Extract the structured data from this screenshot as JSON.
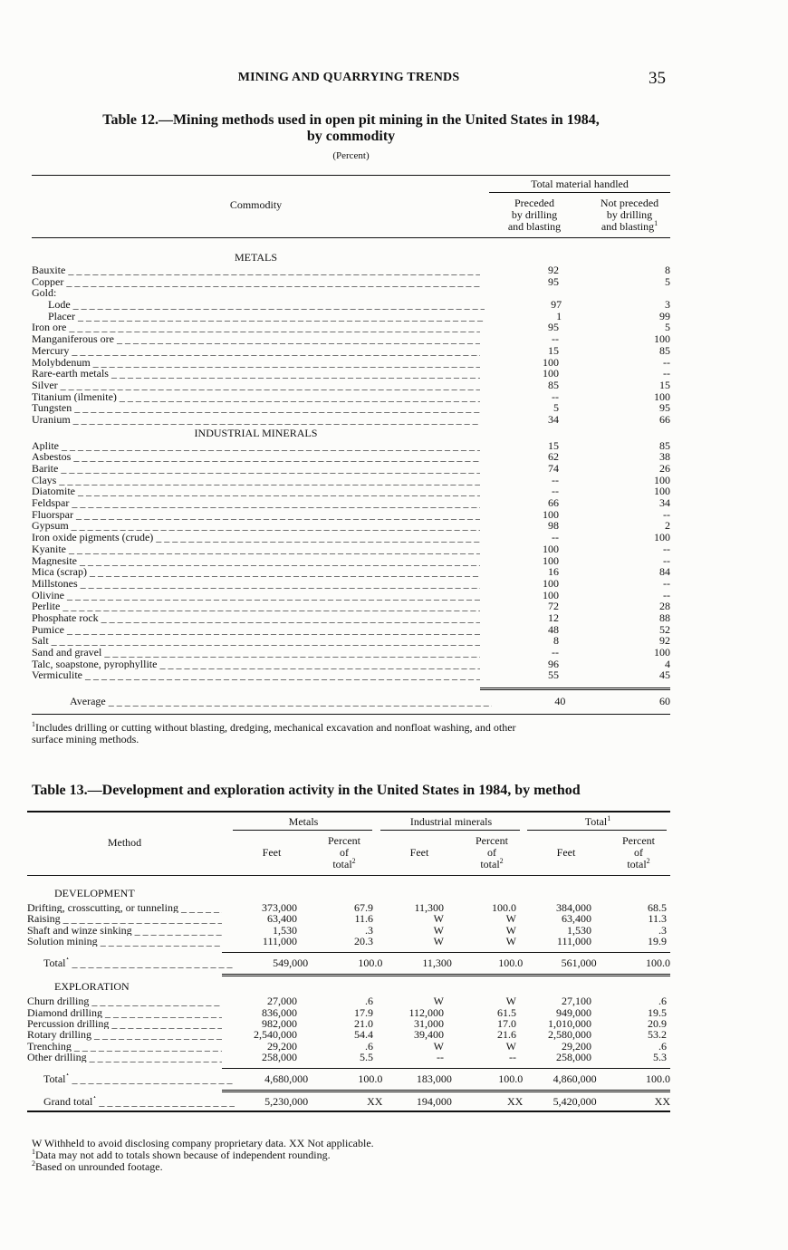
{
  "header": {
    "running_title": "MINING AND QUARRYING TRENDS",
    "page_number": "35"
  },
  "table12": {
    "title_line1": "Table 12.—Mining methods used in open pit mining in the United States in 1984,",
    "title_line2": "by commodity",
    "unit": "(Percent)",
    "col_commodity": "Commodity",
    "col_group": "Total material handled",
    "col1": [
      "Preceded",
      "by drilling",
      "and blasting"
    ],
    "col2": [
      "Not preceded",
      "by drilling",
      "and blasting"
    ],
    "col2_sup": "1",
    "rows": [
      {
        "type": "section",
        "label": "METALS"
      },
      {
        "label": "Bauxite",
        "a": "92",
        "b": "8"
      },
      {
        "label": "Copper",
        "a": "95",
        "b": "5"
      },
      {
        "label": "Gold:",
        "a": "",
        "b": "",
        "nolead": true
      },
      {
        "label": "Lode",
        "a": "97",
        "b": "3",
        "indent": true
      },
      {
        "label": "Placer",
        "a": "1",
        "b": "99",
        "indent": true
      },
      {
        "label": "Iron ore",
        "a": "95",
        "b": "5"
      },
      {
        "label": "Manganiferous ore",
        "a": "--",
        "b": "100"
      },
      {
        "label": "Mercury",
        "a": "15",
        "b": "85"
      },
      {
        "label": "Molybdenum",
        "a": "100",
        "b": "--"
      },
      {
        "label": "Rare-earth metals",
        "a": "100",
        "b": "--"
      },
      {
        "label": "Silver",
        "a": "85",
        "b": "15"
      },
      {
        "label": "Titanium (ilmenite)",
        "a": "--",
        "b": "100"
      },
      {
        "label": "Tungsten",
        "a": "5",
        "b": "95"
      },
      {
        "label": "Uranium",
        "a": "34",
        "b": "66"
      },
      {
        "type": "section",
        "label": "INDUSTRIAL MINERALS"
      },
      {
        "label": "Aplite",
        "a": "15",
        "b": "85"
      },
      {
        "label": "Asbestos",
        "a": "62",
        "b": "38"
      },
      {
        "label": "Barite",
        "a": "74",
        "b": "26"
      },
      {
        "label": "Clays",
        "a": "--",
        "b": "100"
      },
      {
        "label": "Diatomite",
        "a": "--",
        "b": "100"
      },
      {
        "label": "Feldspar",
        "a": "66",
        "b": "34"
      },
      {
        "label": "Fluorspar",
        "a": "100",
        "b": "--"
      },
      {
        "label": "Gypsum",
        "a": "98",
        "b": "2"
      },
      {
        "label": "Iron oxide pigments (crude)",
        "a": "--",
        "b": "100"
      },
      {
        "label": "Kyanite",
        "a": "100",
        "b": "--"
      },
      {
        "label": "Magnesite",
        "a": "100",
        "b": "--"
      },
      {
        "label": "Mica (scrap)",
        "a": "16",
        "b": "84"
      },
      {
        "label": "Millstones",
        "a": "100",
        "b": "--"
      },
      {
        "label": "Olivine",
        "a": "100",
        "b": "--"
      },
      {
        "label": "Perlite",
        "a": "72",
        "b": "28"
      },
      {
        "label": "Phosphate rock",
        "a": "12",
        "b": "88"
      },
      {
        "label": "Pumice",
        "a": "48",
        "b": "52"
      },
      {
        "label": "Salt",
        "a": "8",
        "b": "92"
      },
      {
        "label": "Sand and gravel",
        "a": "--",
        "b": "100"
      },
      {
        "label": "Talc, soapstone, pyrophyllite",
        "a": "96",
        "b": "4"
      },
      {
        "label": "Vermiculite",
        "a": "55",
        "b": "45"
      }
    ],
    "average": {
      "label": "Average",
      "a": "40",
      "b": "60"
    },
    "footnote_sup": "1",
    "footnote_line1": "Includes drilling or cutting without blasting, dredging, mechanical excavation and nonfloat washing, and other",
    "footnote_line2": "surface mining methods."
  },
  "table13": {
    "title": "Table 13.—Development and exploration activity in the United States in 1984, by method",
    "col_method": "Method",
    "groups": [
      "Metals",
      "Industrial minerals",
      "Total"
    ],
    "group_total_sup": "1",
    "feet": "Feet",
    "percent": [
      "Percent",
      "of",
      "total"
    ],
    "percent_sup": "2",
    "sections": [
      {
        "title": "DEVELOPMENT",
        "rows": [
          [
            "Drifting, crosscutting, or tunneling",
            "373,000",
            "67.9",
            "11,300",
            "100.0",
            "384,000",
            "68.5"
          ],
          [
            "Raising",
            "63,400",
            "11.6",
            "W",
            "W",
            "63,400",
            "11.3"
          ],
          [
            "Shaft and winze sinking",
            "1,530",
            ".3",
            "W",
            "W",
            "1,530",
            ".3"
          ],
          [
            "Solution mining",
            "111,000",
            "20.3",
            "W",
            "W",
            "111,000",
            "19.9"
          ]
        ],
        "total": [
          "Total",
          "549,000",
          "100.0",
          "11,300",
          "100.0",
          "561,000",
          "100.0"
        ]
      },
      {
        "title": "EXPLORATION",
        "rows": [
          [
            "Churn drilling",
            "27,000",
            ".6",
            "W",
            "W",
            "27,100",
            ".6"
          ],
          [
            "Diamond drilling",
            "836,000",
            "17.9",
            "112,000",
            "61.5",
            "949,000",
            "19.5"
          ],
          [
            "Percussion drilling",
            "982,000",
            "21.0",
            "31,000",
            "17.0",
            "1,010,000",
            "20.9"
          ],
          [
            "Rotary drilling",
            "2,540,000",
            "54.4",
            "39,400",
            "21.6",
            "2,580,000",
            "53.2"
          ],
          [
            "Trenching",
            "29,200",
            ".6",
            "W",
            "W",
            "29,200",
            ".6"
          ],
          [
            "Other drilling",
            "258,000",
            "5.5",
            "--",
            "--",
            "258,000",
            "5.3"
          ]
        ],
        "total": [
          "Total",
          "4,680,000",
          "100.0",
          "183,000",
          "100.0",
          "4,860,000",
          "100.0"
        ]
      }
    ],
    "grand_total": [
      "Grand total",
      "5,230,000",
      "XX",
      "194,000",
      "XX",
      "5,420,000",
      "XX"
    ],
    "notes": [
      {
        "sup": "",
        "text": "W Withheld to avoid disclosing company proprietary data.    XX Not applicable."
      },
      {
        "sup": "1",
        "text": "Data may not add to totals shown because of independent rounding."
      },
      {
        "sup": "2",
        "text": "Based on unrounded footage."
      }
    ]
  }
}
